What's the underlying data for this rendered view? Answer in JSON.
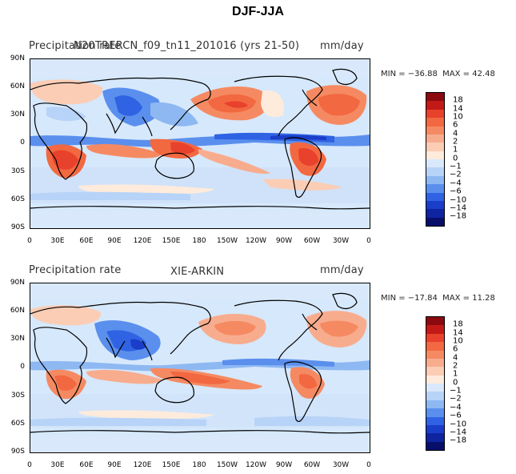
{
  "figure_title": "DJF-JJA",
  "colors": {
    "ocean_base": "#d6e8fb",
    "coast": "#000000"
  },
  "colorbar": {
    "labels": [
      "18",
      "14",
      "10",
      "6",
      "4",
      "2",
      "1",
      "0",
      "−1",
      "−2",
      "−4",
      "−6",
      "−10",
      "−14",
      "−18"
    ],
    "colors": [
      "#8b0a0f",
      "#c21a17",
      "#e8412c",
      "#f26841",
      "#f58a62",
      "#f8ac8e",
      "#fbcdb5",
      "#feebdc",
      "#d9e9fb",
      "#b7d3f7",
      "#8eb8f2",
      "#5a8fee",
      "#2f63e3",
      "#1a3ec9",
      "#0f24a0",
      "#080f6a"
    ]
  },
  "axis": {
    "y_ticks": [
      "90N",
      "60N",
      "30N",
      "0",
      "30S",
      "60S",
      "90S"
    ],
    "x_ticks": [
      "0",
      "30E",
      "60E",
      "90E",
      "120E",
      "150E",
      "180",
      "150W",
      "120W",
      "90W",
      "60W",
      "30W",
      "0"
    ]
  },
  "panels": [
    {
      "left_label": "Precipitation rate",
      "center_label": "N20TRERCN_f09_tn11_201016 (yrs 21-50)",
      "units": "mm/day",
      "min_label": "MIN = −36.88",
      "max_label": "MAX =  42.48"
    },
    {
      "left_label": "Precipitation rate",
      "center_label": "XIE-ARKIN",
      "units": "mm/day",
      "min_label": "MIN = −17.84",
      "max_label": "MAX =  11.28"
    }
  ]
}
